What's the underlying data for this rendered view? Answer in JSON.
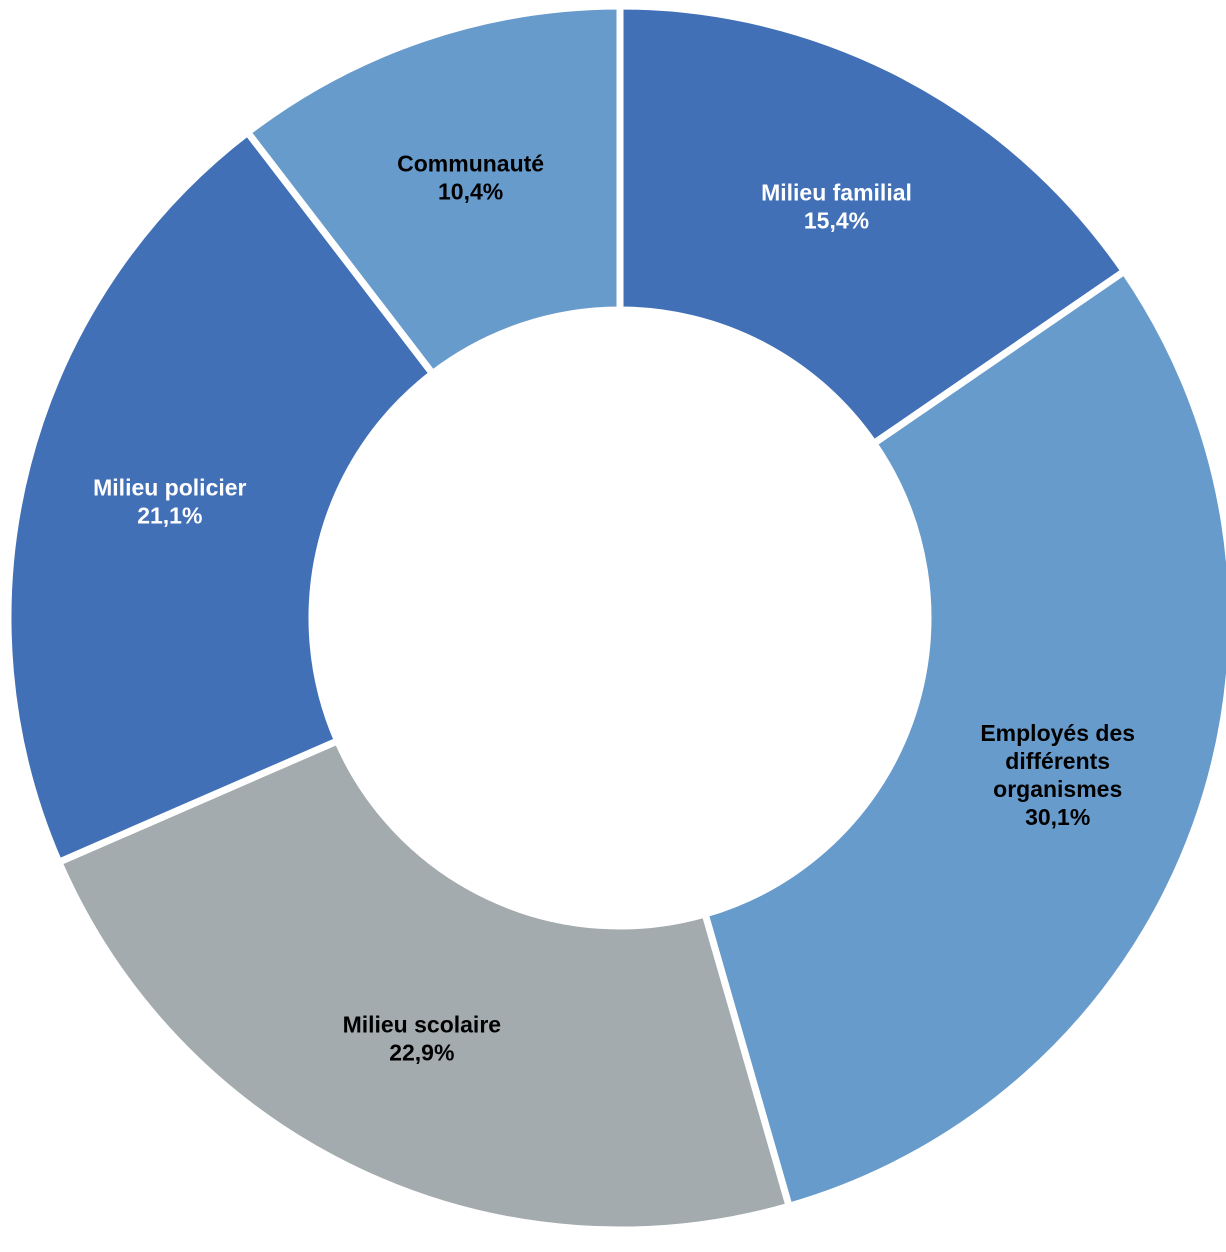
{
  "chart_data": {
    "type": "pie",
    "variant": "donut",
    "title": "",
    "slices": [
      {
        "label_lines": [
          "Milieu familial"
        ],
        "value": 15.4,
        "value_label": "15,4%",
        "color": "#4270b7",
        "text_color": "#ffffff"
      },
      {
        "label_lines": [
          "Employés des",
          "différents",
          "organismes"
        ],
        "value": 30.1,
        "value_label": "30,1%",
        "color": "#679bcc",
        "text_color": "#000000"
      },
      {
        "label_lines": [
          "Milieu scolaire"
        ],
        "value": 22.9,
        "value_label": "22,9%",
        "color": "#a3abae",
        "text_color": "#000000"
      },
      {
        "label_lines": [
          "Milieu policier"
        ],
        "value": 21.1,
        "value_label": "21,1%",
        "color": "#4270b7",
        "text_color": "#ffffff"
      },
      {
        "label_lines": [
          "Communauté"
        ],
        "value": 10.4,
        "value_label": "10,4%",
        "color": "#679bcc",
        "text_color": "#000000"
      }
    ],
    "start": "12 o'clock",
    "direction": "clockwise",
    "legend": "none",
    "separator_color": "#ffffff"
  }
}
